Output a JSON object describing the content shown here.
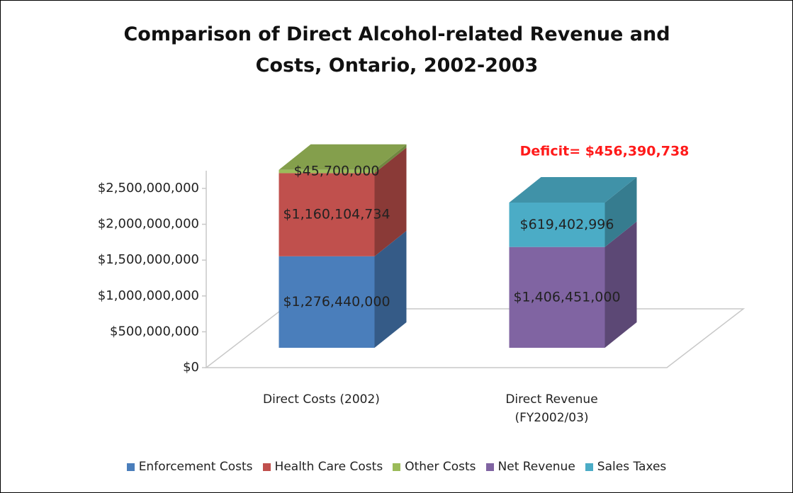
{
  "chart_data": {
    "type": "bar3d_stacked",
    "title": "Comparison of Direct Alcohol-related Revenue and Costs, Ontario, 2002-2003",
    "categories": [
      "Direct Costs (2002)",
      "Direct Revenue (FY2002/03)"
    ],
    "series": [
      {
        "name": "Enforcement Costs",
        "color": "#4a7ebb",
        "values": [
          1276440000,
          null
        ],
        "value_labels": [
          "$1,276,440,000",
          null
        ]
      },
      {
        "name": "Health Care Costs",
        "color": "#c0504d",
        "values": [
          1160104734,
          null
        ],
        "value_labels": [
          "$1,160,104,734",
          null
        ]
      },
      {
        "name": "Other Costs",
        "color": "#9bbb59",
        "values": [
          45700000,
          null
        ],
        "value_labels": [
          "$45,700,000",
          null
        ]
      },
      {
        "name": "Net Revenue",
        "color": "#8064a2",
        "values": [
          null,
          1406451000
        ],
        "value_labels": [
          null,
          "$1,406,451,000"
        ]
      },
      {
        "name": "Sales Taxes",
        "color": "#4bacc6",
        "values": [
          null,
          619402996
        ],
        "value_labels": [
          null,
          "$619,402,996"
        ]
      }
    ],
    "annotations": [
      {
        "text": "Deficit= $456,390,738",
        "color": "#ff1a1a"
      }
    ],
    "ylim": [
      0,
      2500000000
    ],
    "yticks": [
      {
        "value": 0,
        "label": "$0"
      },
      {
        "value": 500000000,
        "label": "$500,000,000"
      },
      {
        "value": 1000000000,
        "label": "$1,000,000,000"
      },
      {
        "value": 1500000000,
        "label": "$1,500,000,000"
      },
      {
        "value": 2000000000,
        "label": "$2,000,000,000"
      },
      {
        "value": 2500000000,
        "label": "$2,500,000,000"
      }
    ],
    "legend": "bottom"
  }
}
